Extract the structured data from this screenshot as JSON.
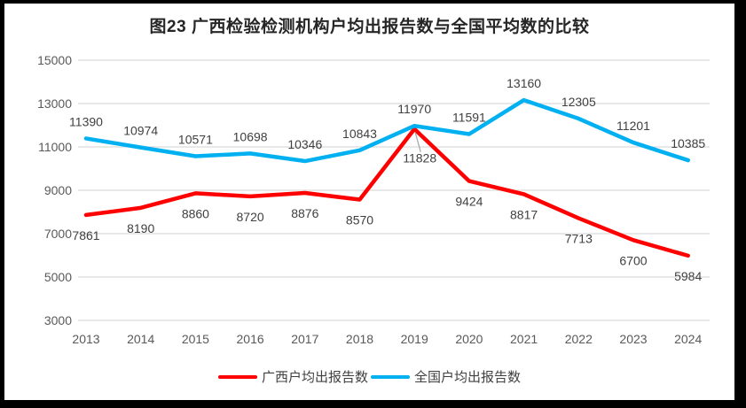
{
  "title": "图23 广西检验检测机构户均出报告数与全国平均数的比较",
  "chart_data": {
    "type": "line",
    "title": "图23 广西检验检测机构户均出报告数与全国平均数的比较",
    "categories": [
      "2013",
      "2014",
      "2015",
      "2016",
      "2017",
      "2018",
      "2019",
      "2020",
      "2021",
      "2022",
      "2023",
      "2024"
    ],
    "series": [
      {
        "name": "广西户均出报告数",
        "color": "#FF0000",
        "label_position": "below",
        "values": [
          7861,
          8190,
          8860,
          8720,
          8876,
          8570,
          11828,
          9424,
          8817,
          7713,
          6700,
          5984
        ]
      },
      {
        "name": "全国户均出报告数",
        "color": "#00B0F0",
        "label_position": "above",
        "values": [
          11390,
          10974,
          10571,
          10698,
          10346,
          10843,
          11970,
          11591,
          13160,
          12305,
          11201,
          10385
        ]
      }
    ],
    "ylim": [
      3000,
      15000
    ],
    "yticks": [
      15000,
      13000,
      11000,
      9000,
      7000,
      5000,
      3000
    ],
    "grid": true,
    "legend_position": "bottom",
    "data_labels": true,
    "colors": {
      "gridline": "#D9D9D9",
      "axis_label": "#595959",
      "data_label": "#404040",
      "title": "#262626",
      "frame_border": "#000000",
      "leader_line": "#A6A6A6"
    }
  },
  "legend": {
    "items": [
      {
        "label": "广西户均出报告数",
        "color": "#FF0000"
      },
      {
        "label": "全国户均出报告数",
        "color": "#00B0F0"
      }
    ]
  }
}
